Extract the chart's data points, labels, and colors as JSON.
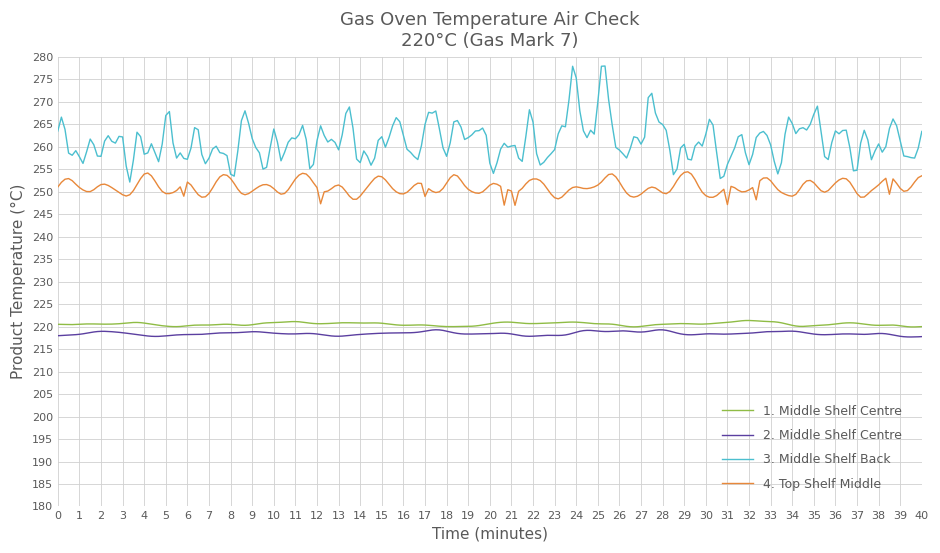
{
  "title_line1": "Gas Oven Temperature Air Check",
  "title_line2": "220°C (Gas Mark 7)",
  "xlabel": "Time (minutes)",
  "ylabel": "Product Temperature (°C)",
  "ylim": [
    180,
    280
  ],
  "xlim": [
    0,
    40
  ],
  "yticks": [
    180,
    185,
    190,
    195,
    200,
    205,
    210,
    215,
    220,
    225,
    230,
    235,
    240,
    245,
    250,
    255,
    260,
    265,
    270,
    275,
    280
  ],
  "xticks": [
    0,
    1,
    2,
    3,
    4,
    5,
    6,
    7,
    8,
    9,
    10,
    11,
    12,
    13,
    14,
    15,
    16,
    17,
    18,
    19,
    20,
    21,
    22,
    23,
    24,
    25,
    26,
    27,
    28,
    29,
    30,
    31,
    32,
    33,
    34,
    35,
    36,
    37,
    38,
    39,
    40
  ],
  "series": {
    "1. Middle Shelf Centre": {
      "color": "#8fbc45",
      "linewidth": 1.0
    },
    "2. Middle Shelf Centre": {
      "color": "#5b3fa0",
      "linewidth": 1.0
    },
    "3. Middle Shelf Back": {
      "color": "#4bbfcf",
      "linewidth": 1.0
    },
    "4. Top Shelf Middle": {
      "color": "#e8883a",
      "linewidth": 1.0
    }
  },
  "background_color": "#ffffff",
  "grid_color": "#d0d0d0",
  "title_color": "#595959",
  "legend_fontsize": 9,
  "axis_label_fontsize": 11,
  "title_fontsize": 13,
  "tick_labelsize": 8
}
